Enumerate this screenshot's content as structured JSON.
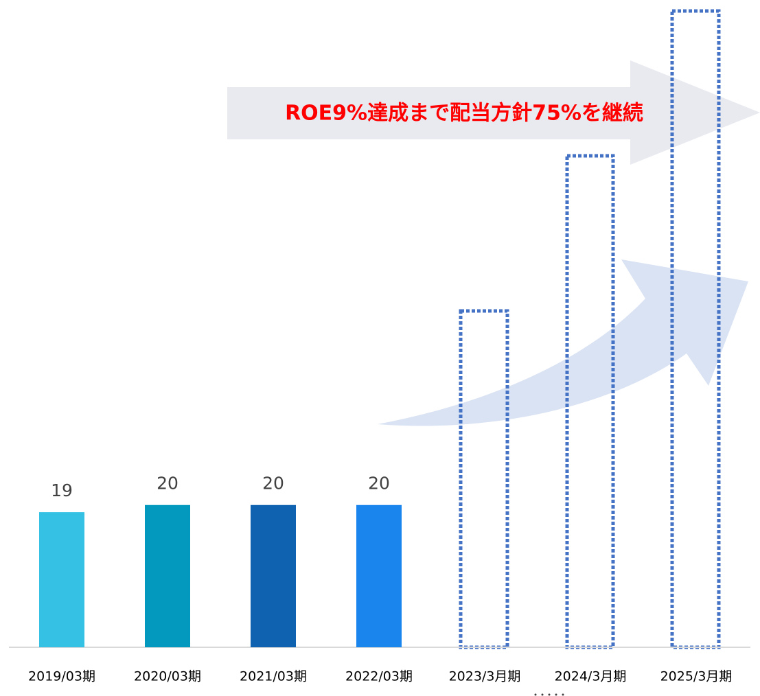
{
  "chart_data": {
    "type": "bar",
    "annotation": "ROE9%達成まで配当方針75%を継続",
    "categories": [
      "2019/03期",
      "2020/03期",
      "2021/03期",
      "2022/03期",
      "2023/3月期",
      "2024/3月期",
      "2025/3月期"
    ],
    "values": [
      19,
      20,
      20,
      20,
      null,
      null,
      null
    ],
    "colors": [
      "#35c1e3",
      "#0399bf",
      "#0f62b0",
      "#1a85ed",
      null,
      null,
      null
    ],
    "ylim": [
      0,
      91
    ]
  }
}
